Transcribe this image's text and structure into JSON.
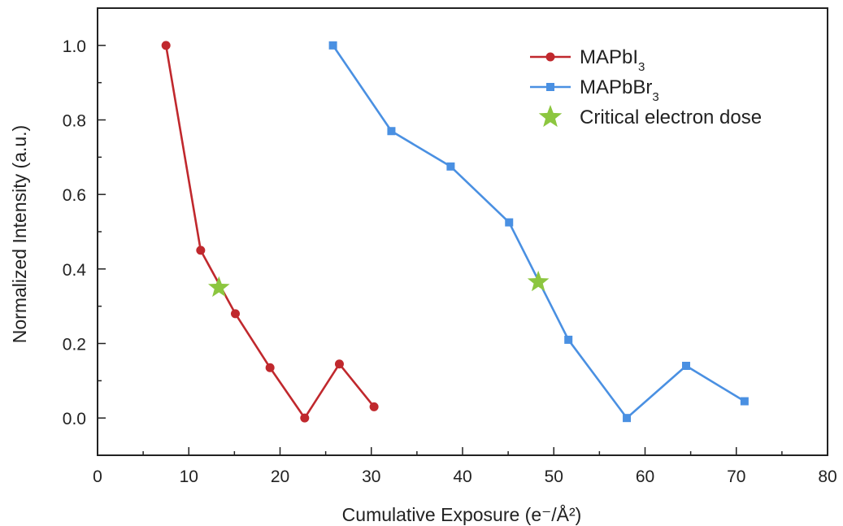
{
  "chart_data": {
    "type": "line",
    "xlabel": "Cumulative Exposure (e⁻/Å²)",
    "ylabel": "Normalized Intensity (a.u.)",
    "xlim": [
      0,
      80
    ],
    "ylim": [
      -0.1,
      1.1
    ],
    "x_ticks": [
      "0",
      "10",
      "20",
      "30",
      "40",
      "50",
      "60",
      "70",
      "80"
    ],
    "y_ticks": [
      "0.0",
      "0.2",
      "0.4",
      "0.6",
      "0.8",
      "1.0"
    ],
    "grid": false,
    "legend_position": "top-right",
    "series": [
      {
        "name": "MAPbI",
        "name_subscript": "3",
        "color": "#c0282d",
        "marker": "circle",
        "x": [
          7.5,
          11.3,
          15.1,
          18.9,
          22.7,
          26.5,
          30.3
        ],
        "y": [
          1.0,
          0.45,
          0.28,
          0.135,
          0.0,
          0.145,
          0.03
        ]
      },
      {
        "name": "MAPbBr",
        "name_subscript": "3",
        "color": "#4a90e2",
        "marker": "square",
        "x": [
          25.8,
          32.2,
          38.7,
          45.1,
          51.6,
          58.0,
          64.5,
          70.9
        ],
        "y": [
          1.0,
          0.77,
          0.675,
          0.525,
          0.21,
          0.0,
          0.14,
          0.045
        ]
      },
      {
        "name": "Critical electron dose",
        "color": "#8cc63f",
        "marker": "star",
        "x": [
          13.3,
          48.3
        ],
        "y": [
          0.35,
          0.365
        ]
      }
    ]
  }
}
